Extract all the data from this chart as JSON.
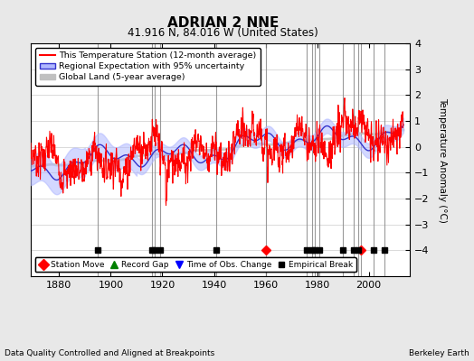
{
  "title": "ADRIAN 2 NNE",
  "subtitle": "41.916 N, 84.016 W (United States)",
  "ylabel": "Temperature Anomaly (°C)",
  "xlabel_note": "Data Quality Controlled and Aligned at Breakpoints",
  "attribution": "Berkeley Earth",
  "ylim": [
    -5,
    4
  ],
  "xlim": [
    1869,
    2016
  ],
  "xticks": [
    1880,
    1900,
    1920,
    1940,
    1960,
    1980,
    2000
  ],
  "yticks": [
    -4,
    -3,
    -2,
    -1,
    0,
    1,
    2,
    3,
    4
  ],
  "bg_color": "#e8e8e8",
  "plot_bg_color": "#ffffff",
  "grid_color": "#cccccc",
  "vertical_lines": [
    1895,
    1916,
    1917,
    1919,
    1941,
    1960,
    1976,
    1978,
    1979,
    1981,
    1990,
    1994,
    1996,
    1997,
    2002,
    2006
  ],
  "station_moves": [
    1960,
    1997
  ],
  "empirical_breaks": [
    1895,
    1916,
    1917,
    1919,
    1941,
    1976,
    1978,
    1979,
    1981,
    1990,
    1994,
    1996,
    2002,
    2006
  ],
  "marker_y": -4.0,
  "red_line_color": "#ff0000",
  "blue_line_color": "#3333cc",
  "blue_fill_color": "#b0b8ff",
  "gray_line_color": "#c0c0c0",
  "vline_color": "#888888",
  "legend_top_labels": [
    "This Temperature Station (12-month average)",
    "Regional Expectation with 95% uncertainty",
    "Global Land (5-year average)"
  ],
  "legend_bot_labels": [
    "Station Move",
    "Record Gap",
    "Time of Obs. Change",
    "Empirical Break"
  ]
}
